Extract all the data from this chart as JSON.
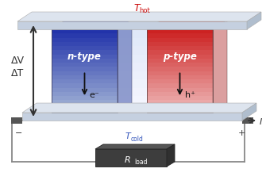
{
  "bg_color": "#ffffff",
  "title_hot_color": "#cc1111",
  "title_cold_color": "#3355bb",
  "n_type_label": "n-type",
  "p_type_label": "p-type",
  "n_carrier": "e⁻",
  "p_carrier": "h⁺",
  "delta_v": "ΔV",
  "delta_t": "ΔT",
  "circuit_color": "#888888",
  "rload_color_face": "#3d3d3d",
  "rload_color_top": "#555555",
  "minus_label": "−",
  "plus_label": "+",
  "current_label": "I",
  "plate_front": "#c5d0e0",
  "plate_top": "#dde4ee",
  "plate_side": "#b0bece",
  "n_top_color": "#2233aa",
  "n_bot_color": "#aabbd8",
  "p_top_color": "#cc2222",
  "p_bot_color": "#f0c0c0",
  "n_side_color": "#6677bb",
  "p_side_color": "#cc7777",
  "gap_color": "#e8e8ee"
}
